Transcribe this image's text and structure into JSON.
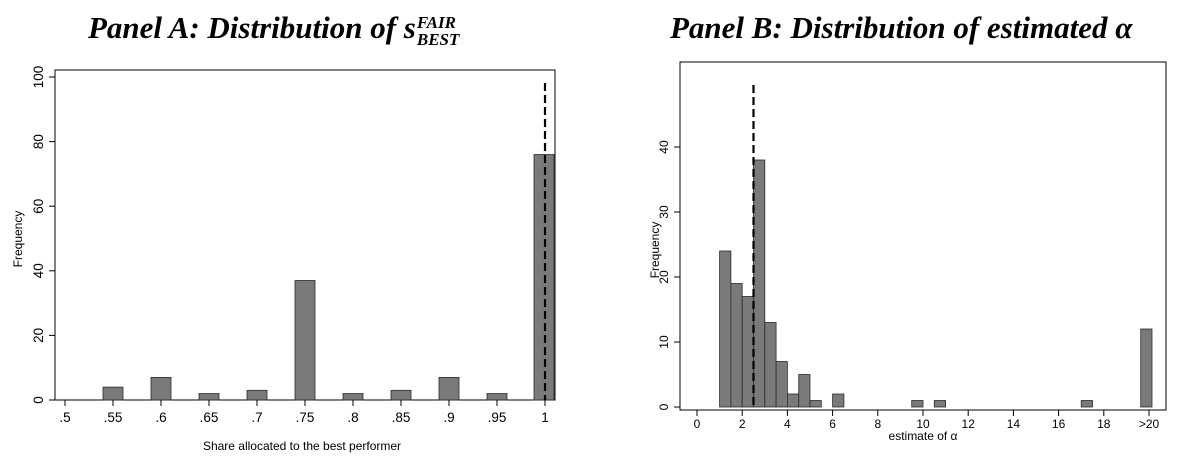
{
  "panel_a": {
    "title_prefix": "Panel A: Distribution of ",
    "title_symbol": "s",
    "title_superscript": "FAIR",
    "title_subscript": "BEST"
  },
  "panel_b": {
    "title_prefix": "Panel B: Distribution of estimated ",
    "title_symbol": "α"
  },
  "chart_data": [
    {
      "type": "bar",
      "xlabel": "Share allocated to the best performer",
      "ylabel": "Frequency",
      "xlim": [
        0.5,
        1.0
      ],
      "ylim": [
        0,
        100
      ],
      "x_ticks": [
        ".5",
        ".55",
        ".6",
        ".65",
        ".7",
        ".75",
        ".8",
        ".85",
        ".9",
        ".95",
        "1"
      ],
      "x_tick_values": [
        0.5,
        0.55,
        0.6,
        0.65,
        0.7,
        0.75,
        0.8,
        0.85,
        0.9,
        0.95,
        1.0
      ],
      "y_ticks": [
        0,
        20,
        40,
        60,
        80,
        100
      ],
      "bars": [
        {
          "x": 0.55,
          "value": 4
        },
        {
          "x": 0.6,
          "value": 7
        },
        {
          "x": 0.65,
          "value": 2
        },
        {
          "x": 0.7,
          "value": 3
        },
        {
          "x": 0.75,
          "value": 37
        },
        {
          "x": 0.8,
          "value": 2
        },
        {
          "x": 0.85,
          "value": 3
        },
        {
          "x": 0.9,
          "value": 7
        },
        {
          "x": 0.95,
          "value": 2
        },
        {
          "x": 1.0,
          "value": 76
        }
      ],
      "reference_line_x": 1.0,
      "bar_color": "#7a7a7a",
      "grid": false
    },
    {
      "type": "bar",
      "xlabel": "estimate of α",
      "ylabel": "Frequency",
      "xlim": [
        0,
        20
      ],
      "ylim": [
        0,
        50
      ],
      "x_ticks": [
        "0",
        "2",
        "4",
        "6",
        "8",
        "10",
        "12",
        "14",
        "16",
        "18",
        ">20"
      ],
      "x_tick_values": [
        0,
        2,
        4,
        6,
        8,
        10,
        12,
        14,
        16,
        18,
        20
      ],
      "y_ticks": [
        0,
        10,
        20,
        30,
        40
      ],
      "bin_width": 0.5,
      "bars": [
        {
          "x": 1.0,
          "value": 24
        },
        {
          "x": 1.5,
          "value": 19
        },
        {
          "x": 2.0,
          "value": 17
        },
        {
          "x": 2.5,
          "value": 38
        },
        {
          "x": 3.0,
          "value": 13
        },
        {
          "x": 3.5,
          "value": 7
        },
        {
          "x": 4.0,
          "value": 2
        },
        {
          "x": 4.5,
          "value": 5
        },
        {
          "x": 5.0,
          "value": 1
        },
        {
          "x": 6.0,
          "value": 2
        },
        {
          "x": 9.5,
          "value": 1
        },
        {
          "x": 10.5,
          "value": 1
        },
        {
          "x": 17.0,
          "value": 1
        },
        {
          "x": 19.5,
          "value": 12
        }
      ],
      "reference_line_x": 2.5,
      "bar_color": "#7a7a7a",
      "grid": false
    }
  ]
}
